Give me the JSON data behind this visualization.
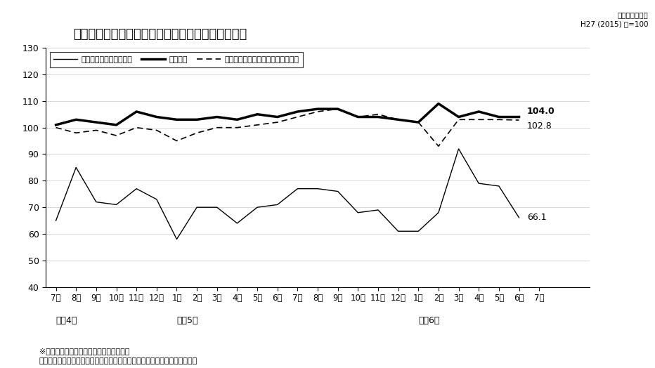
{
  "title": "食料品工業（畜産関係・飲料・その他）の生産指数",
  "subtitle_line1": "季節調整済指数",
  "subtitle_line2": "H27 (2015) 年=100",
  "xlabel_months": [
    "7月",
    "8月",
    "9月",
    "10月",
    "11月",
    "12月",
    "1月",
    "2月",
    "3月",
    "4月",
    "5月",
    "6月",
    "7月",
    "8月",
    "9月",
    "10月",
    "11月",
    "12月",
    "1月",
    "2月",
    "3月",
    "4月",
    "5月",
    "6月",
    "7月"
  ],
  "year_labels": [
    {
      "text": "令和4年",
      "index": 0
    },
    {
      "text": "令和5年",
      "index": 6
    },
    {
      "text": "令和6年",
      "index": 18
    }
  ],
  "ylim": [
    40,
    130
  ],
  "yticks": [
    40,
    50,
    60,
    70,
    80,
    90,
    100,
    110,
    120,
    130
  ],
  "line1_label": "飲料（焼酎・清涼飲料）",
  "line2_label": "畜産関係",
  "line3_label": "食料品工業（除く畜産関係・飲料）",
  "line1_values": [
    65,
    85,
    72,
    71,
    77,
    73,
    58,
    70,
    70,
    64,
    70,
    71,
    77,
    77,
    76,
    68,
    69,
    61,
    61,
    68,
    92,
    79,
    78,
    66.1
  ],
  "line2_values": [
    101,
    103,
    102,
    101,
    106,
    104,
    103,
    103,
    104,
    103,
    105,
    104,
    106,
    107,
    107,
    104,
    104,
    103,
    102,
    109,
    104,
    106,
    104,
    104.0
  ],
  "line3_values": [
    100,
    98,
    99,
    97,
    100,
    99,
    95,
    98,
    100,
    100,
    101,
    102,
    104,
    106,
    107,
    104,
    105,
    103,
    102,
    93,
    103,
    103,
    103,
    102.8
  ],
  "note_line1": "※畜産関係＝　食肉、乳製品、配合飼料等",
  "note_line2": "　食料品工業（除く畜産関係・飲料）＝　食料品工業－（畜産関係＋飲料）",
  "end_label_line2": "104.0",
  "end_label_line3": "102.8",
  "end_label_line1": "66.1"
}
